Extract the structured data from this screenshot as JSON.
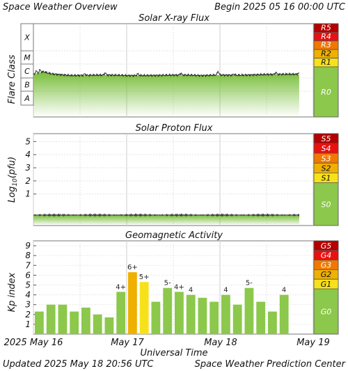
{
  "header": {
    "title": "Space Weather Overview",
    "begin": "Begin 2025 05 16 00:00 UTC"
  },
  "footer": {
    "updated": "Updated 2025 May 18 20:56 UTC",
    "center": "Space Weather Prediction Center",
    "xlabel": "Universal Time",
    "dates": [
      "2025 May 16",
      "May 17",
      "May 18",
      "May 19"
    ]
  },
  "colors": {
    "green": "#8cc84b",
    "yellow": "#f7e11a",
    "gold": "#f0b000",
    "orange": "#f07800",
    "red": "#e81010",
    "darkred": "#b40000",
    "grid": "#cccccc"
  },
  "chart_data": [
    {
      "type": "line",
      "title": "Solar X-ray Flux",
      "ylabel": "Flare Class",
      "classes": [
        "A",
        "B",
        "C",
        "M",
        "X"
      ],
      "scale": [
        {
          "label": "R5"
        },
        {
          "label": "R4"
        },
        {
          "label": "R3"
        },
        {
          "label": "R2"
        },
        {
          "label": "R1"
        },
        {
          "label": "R0"
        }
      ],
      "xlim_days": [
        0,
        3
      ],
      "trend": [
        {
          "t": 0.0,
          "v": 2.25
        },
        {
          "t": 0.1,
          "v": 2.45
        },
        {
          "t": 0.2,
          "v": 2.3
        },
        {
          "t": 0.4,
          "v": 2.18
        },
        {
          "t": 0.6,
          "v": 2.2
        },
        {
          "t": 0.8,
          "v": 2.22
        },
        {
          "t": 1.0,
          "v": 2.18
        },
        {
          "t": 1.2,
          "v": 2.18
        },
        {
          "t": 1.4,
          "v": 2.2
        },
        {
          "t": 1.6,
          "v": 2.22
        },
        {
          "t": 1.8,
          "v": 2.18
        },
        {
          "t": 2.0,
          "v": 2.22
        },
        {
          "t": 2.2,
          "v": 2.2
        },
        {
          "t": 2.4,
          "v": 2.24
        },
        {
          "t": 2.6,
          "v": 2.27
        },
        {
          "t": 2.8,
          "v": 2.28
        },
        {
          "t": 2.85,
          "v": 2.25
        }
      ],
      "spikes": [
        {
          "t": 0.03,
          "v": 2.52
        },
        {
          "t": 0.07,
          "v": 2.6
        },
        {
          "t": 0.12,
          "v": 2.45
        },
        {
          "t": 0.55,
          "v": 2.3
        },
        {
          "t": 0.77,
          "v": 2.38
        },
        {
          "t": 1.12,
          "v": 2.3
        },
        {
          "t": 1.58,
          "v": 2.34
        },
        {
          "t": 1.98,
          "v": 2.48
        },
        {
          "t": 2.15,
          "v": 2.28
        },
        {
          "t": 2.6,
          "v": 2.4
        },
        {
          "t": 2.84,
          "v": 2.35
        }
      ]
    },
    {
      "type": "line",
      "title": "Solar Proton Flux",
      "ylabel": "Log10(pfu)",
      "yticks": [
        1,
        2,
        3,
        4,
        5
      ],
      "ylim": [
        -1.4,
        5.6
      ],
      "scale": [
        {
          "label": "S5"
        },
        {
          "label": "S4"
        },
        {
          "label": "S3"
        },
        {
          "label": "S2"
        },
        {
          "label": "S1"
        },
        {
          "label": "S0"
        }
      ],
      "level": -0.6
    },
    {
      "type": "bar",
      "title": "Geomagnetic Activity",
      "ylabel": "Kp index",
      "yticks": [
        1,
        2,
        3,
        4,
        5,
        6,
        7,
        8,
        9
      ],
      "ylim": [
        0,
        9.5
      ],
      "xlim_days": [
        0,
        3
      ],
      "scale": [
        {
          "label": "G5"
        },
        {
          "label": "G4"
        },
        {
          "label": "G3"
        },
        {
          "label": "G2"
        },
        {
          "label": "G1"
        },
        {
          "label": "G0"
        }
      ],
      "values": [
        2.3,
        3.0,
        3.0,
        2.3,
        2.7,
        2.0,
        1.7,
        4.3,
        6.3,
        5.3,
        3.3,
        4.7,
        4.3,
        4.0,
        3.7,
        3.3,
        4.0,
        3.0,
        4.7,
        3.3,
        2.3,
        4.0
      ],
      "labels": [
        "",
        "",
        "",
        "",
        "",
        "",
        "",
        "4+",
        "6+",
        "5+",
        "",
        "5-",
        "4+",
        "4",
        "",
        "",
        "4",
        "",
        "5-",
        "",
        "",
        "4"
      ]
    }
  ]
}
